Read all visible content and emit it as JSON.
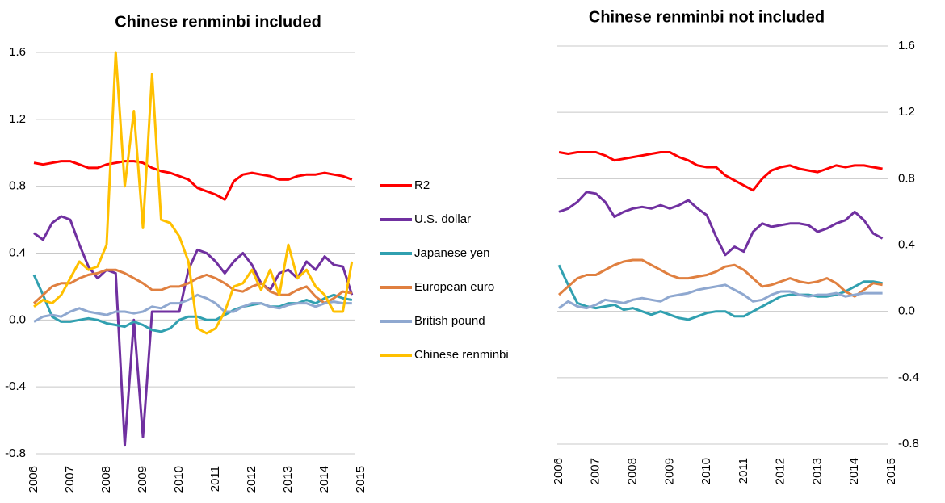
{
  "chart_data": [
    {
      "type": "line",
      "title": "Chinese renminbi included",
      "x": [
        2006,
        2006.25,
        2006.5,
        2006.75,
        2007,
        2007.25,
        2007.5,
        2007.75,
        2008,
        2008.25,
        2008.5,
        2008.75,
        2009,
        2009.25,
        2009.5,
        2009.75,
        2010,
        2010.25,
        2010.5,
        2010.75,
        2011,
        2011.25,
        2011.5,
        2011.75,
        2012,
        2012.25,
        2012.5,
        2012.75,
        2013,
        2013.25,
        2013.5,
        2013.75,
        2014,
        2014.25,
        2014.5,
        2014.75
      ],
      "xlim": [
        2006,
        2015
      ],
      "xticks": [
        2006,
        2007,
        2008,
        2009,
        2010,
        2011,
        2012,
        2013,
        2014,
        2015
      ],
      "ylim": [
        -0.8,
        1.6
      ],
      "yticks": [
        -0.8,
        -0.4,
        {
          "value": 0,
          "label": "0.0"
        },
        0.4,
        0.8,
        1.2,
        1.6
      ],
      "grid": true,
      "legend": "right",
      "series": [
        {
          "name": "R2",
          "color": "#ff0000",
          "values": [
            0.94,
            0.93,
            0.94,
            0.95,
            0.95,
            0.93,
            0.91,
            0.91,
            0.93,
            0.94,
            0.95,
            0.95,
            0.94,
            0.91,
            0.89,
            0.88,
            0.86,
            0.84,
            0.79,
            0.77,
            0.75,
            0.72,
            0.83,
            0.87,
            0.88,
            0.87,
            0.86,
            0.84,
            0.84,
            0.86,
            0.87,
            0.87,
            0.88,
            0.87,
            0.86,
            0.84
          ]
        },
        {
          "name": "U.S. dollar",
          "color": "#7030a0",
          "values": [
            0.52,
            0.48,
            0.58,
            0.62,
            0.6,
            0.45,
            0.32,
            0.25,
            0.3,
            0.28,
            -0.75,
            0.0,
            -0.7,
            0.05,
            0.05,
            0.05,
            0.05,
            0.3,
            0.42,
            0.4,
            0.35,
            0.28,
            0.35,
            0.4,
            0.33,
            0.22,
            0.18,
            0.28,
            0.3,
            0.25,
            0.35,
            0.3,
            0.38,
            0.33,
            0.32,
            0.15
          ]
        },
        {
          "name": "Japanese yen",
          "color": "#31a0b0",
          "values": [
            0.27,
            0.15,
            0.02,
            -0.01,
            -0.01,
            0.0,
            0.01,
            0.0,
            -0.02,
            -0.03,
            -0.04,
            -0.01,
            -0.03,
            -0.06,
            -0.07,
            -0.05,
            0.0,
            0.02,
            0.02,
            0.0,
            0.0,
            0.03,
            0.06,
            0.08,
            0.09,
            0.1,
            0.08,
            0.08,
            0.1,
            0.1,
            0.12,
            0.1,
            0.13,
            0.15,
            0.13,
            0.12
          ]
        },
        {
          "name": "European euro",
          "color": "#e08040",
          "values": [
            0.1,
            0.15,
            0.2,
            0.22,
            0.22,
            0.25,
            0.27,
            0.28,
            0.3,
            0.3,
            0.28,
            0.25,
            0.22,
            0.18,
            0.18,
            0.2,
            0.2,
            0.22,
            0.25,
            0.27,
            0.25,
            0.22,
            0.18,
            0.17,
            0.2,
            0.22,
            0.17,
            0.15,
            0.15,
            0.18,
            0.2,
            0.14,
            0.1,
            0.13,
            0.17,
            0.16
          ]
        },
        {
          "name": "British pound",
          "color": "#8fa8d0",
          "values": [
            -0.01,
            0.02,
            0.03,
            0.02,
            0.05,
            0.07,
            0.05,
            0.04,
            0.03,
            0.05,
            0.05,
            0.04,
            0.05,
            0.08,
            0.07,
            0.1,
            0.1,
            0.12,
            0.15,
            0.13,
            0.1,
            0.05,
            0.05,
            0.08,
            0.1,
            0.1,
            0.08,
            0.07,
            0.09,
            0.1,
            0.1,
            0.08,
            0.1,
            0.11,
            0.1,
            0.1
          ]
        },
        {
          "name": "Chinese renminbi",
          "color": "#ffc000",
          "values": [
            0.08,
            0.12,
            0.1,
            0.15,
            0.25,
            0.35,
            0.3,
            0.32,
            0.45,
            1.6,
            0.8,
            1.25,
            0.55,
            1.47,
            0.6,
            0.58,
            0.5,
            0.35,
            -0.05,
            -0.08,
            -0.05,
            0.05,
            0.2,
            0.22,
            0.3,
            0.18,
            0.3,
            0.15,
            0.45,
            0.25,
            0.3,
            0.2,
            0.15,
            0.05,
            0.05,
            0.35
          ]
        }
      ]
    },
    {
      "type": "line",
      "title": "Chinese renminbi not included",
      "x": [
        2006,
        2006.25,
        2006.5,
        2006.75,
        2007,
        2007.25,
        2007.5,
        2007.75,
        2008,
        2008.25,
        2008.5,
        2008.75,
        2009,
        2009.25,
        2009.5,
        2009.75,
        2010,
        2010.25,
        2010.5,
        2010.75,
        2011,
        2011.25,
        2011.5,
        2011.75,
        2012,
        2012.25,
        2012.5,
        2012.75,
        2013,
        2013.25,
        2013.5,
        2013.75,
        2014,
        2014.25,
        2014.5,
        2014.75
      ],
      "xlim": [
        2006,
        2015
      ],
      "xticks": [
        2006,
        2007,
        2008,
        2009,
        2010,
        2011,
        2012,
        2013,
        2014,
        2015
      ],
      "ylim": [
        -0.8,
        1.6
      ],
      "yticks": [
        -0.8,
        -0.4,
        {
          "value": 0,
          "label": "0.0"
        },
        0.4,
        0.8,
        1.2,
        1.6
      ],
      "grid": true,
      "series": [
        {
          "color": "#ff0000",
          "values": [
            0.96,
            0.95,
            0.96,
            0.96,
            0.96,
            0.94,
            0.91,
            0.92,
            0.93,
            0.94,
            0.95,
            0.96,
            0.96,
            0.93,
            0.91,
            0.88,
            0.87,
            0.87,
            0.82,
            0.79,
            0.76,
            0.73,
            0.8,
            0.85,
            0.87,
            0.88,
            0.86,
            0.85,
            0.84,
            0.86,
            0.88,
            0.87,
            0.88,
            0.88,
            0.87,
            0.86
          ]
        },
        {
          "color": "#7030a0",
          "values": [
            0.6,
            0.62,
            0.66,
            0.72,
            0.71,
            0.66,
            0.57,
            0.6,
            0.62,
            0.63,
            0.62,
            0.64,
            0.62,
            0.64,
            0.67,
            0.62,
            0.58,
            0.45,
            0.34,
            0.39,
            0.36,
            0.48,
            0.53,
            0.51,
            0.52,
            0.53,
            0.53,
            0.52,
            0.48,
            0.5,
            0.53,
            0.55,
            0.6,
            0.55,
            0.47,
            0.44
          ]
        },
        {
          "color": "#31a0b0",
          "values": [
            0.28,
            0.16,
            0.05,
            0.03,
            0.02,
            0.03,
            0.04,
            0.01,
            0.02,
            0.0,
            -0.02,
            0.0,
            -0.02,
            -0.04,
            -0.05,
            -0.03,
            -0.01,
            0.0,
            0.0,
            -0.03,
            -0.03,
            0.0,
            0.03,
            0.06,
            0.09,
            0.1,
            0.1,
            0.1,
            0.09,
            0.09,
            0.1,
            0.12,
            0.15,
            0.18,
            0.18,
            0.17
          ]
        },
        {
          "color": "#e08040",
          "values": [
            0.1,
            0.15,
            0.2,
            0.22,
            0.22,
            0.25,
            0.28,
            0.3,
            0.31,
            0.31,
            0.28,
            0.25,
            0.22,
            0.2,
            0.2,
            0.21,
            0.22,
            0.24,
            0.27,
            0.28,
            0.25,
            0.2,
            0.15,
            0.16,
            0.18,
            0.2,
            0.18,
            0.17,
            0.18,
            0.2,
            0.17,
            0.12,
            0.09,
            0.13,
            0.17,
            0.16
          ]
        },
        {
          "color": "#8fa8d0",
          "values": [
            0.02,
            0.06,
            0.03,
            0.02,
            0.04,
            0.07,
            0.06,
            0.05,
            0.07,
            0.08,
            0.07,
            0.06,
            0.09,
            0.1,
            0.11,
            0.13,
            0.14,
            0.15,
            0.16,
            0.13,
            0.1,
            0.06,
            0.07,
            0.1,
            0.12,
            0.12,
            0.1,
            0.09,
            0.1,
            0.1,
            0.11,
            0.09,
            0.1,
            0.11,
            0.11,
            0.11
          ]
        }
      ]
    }
  ]
}
